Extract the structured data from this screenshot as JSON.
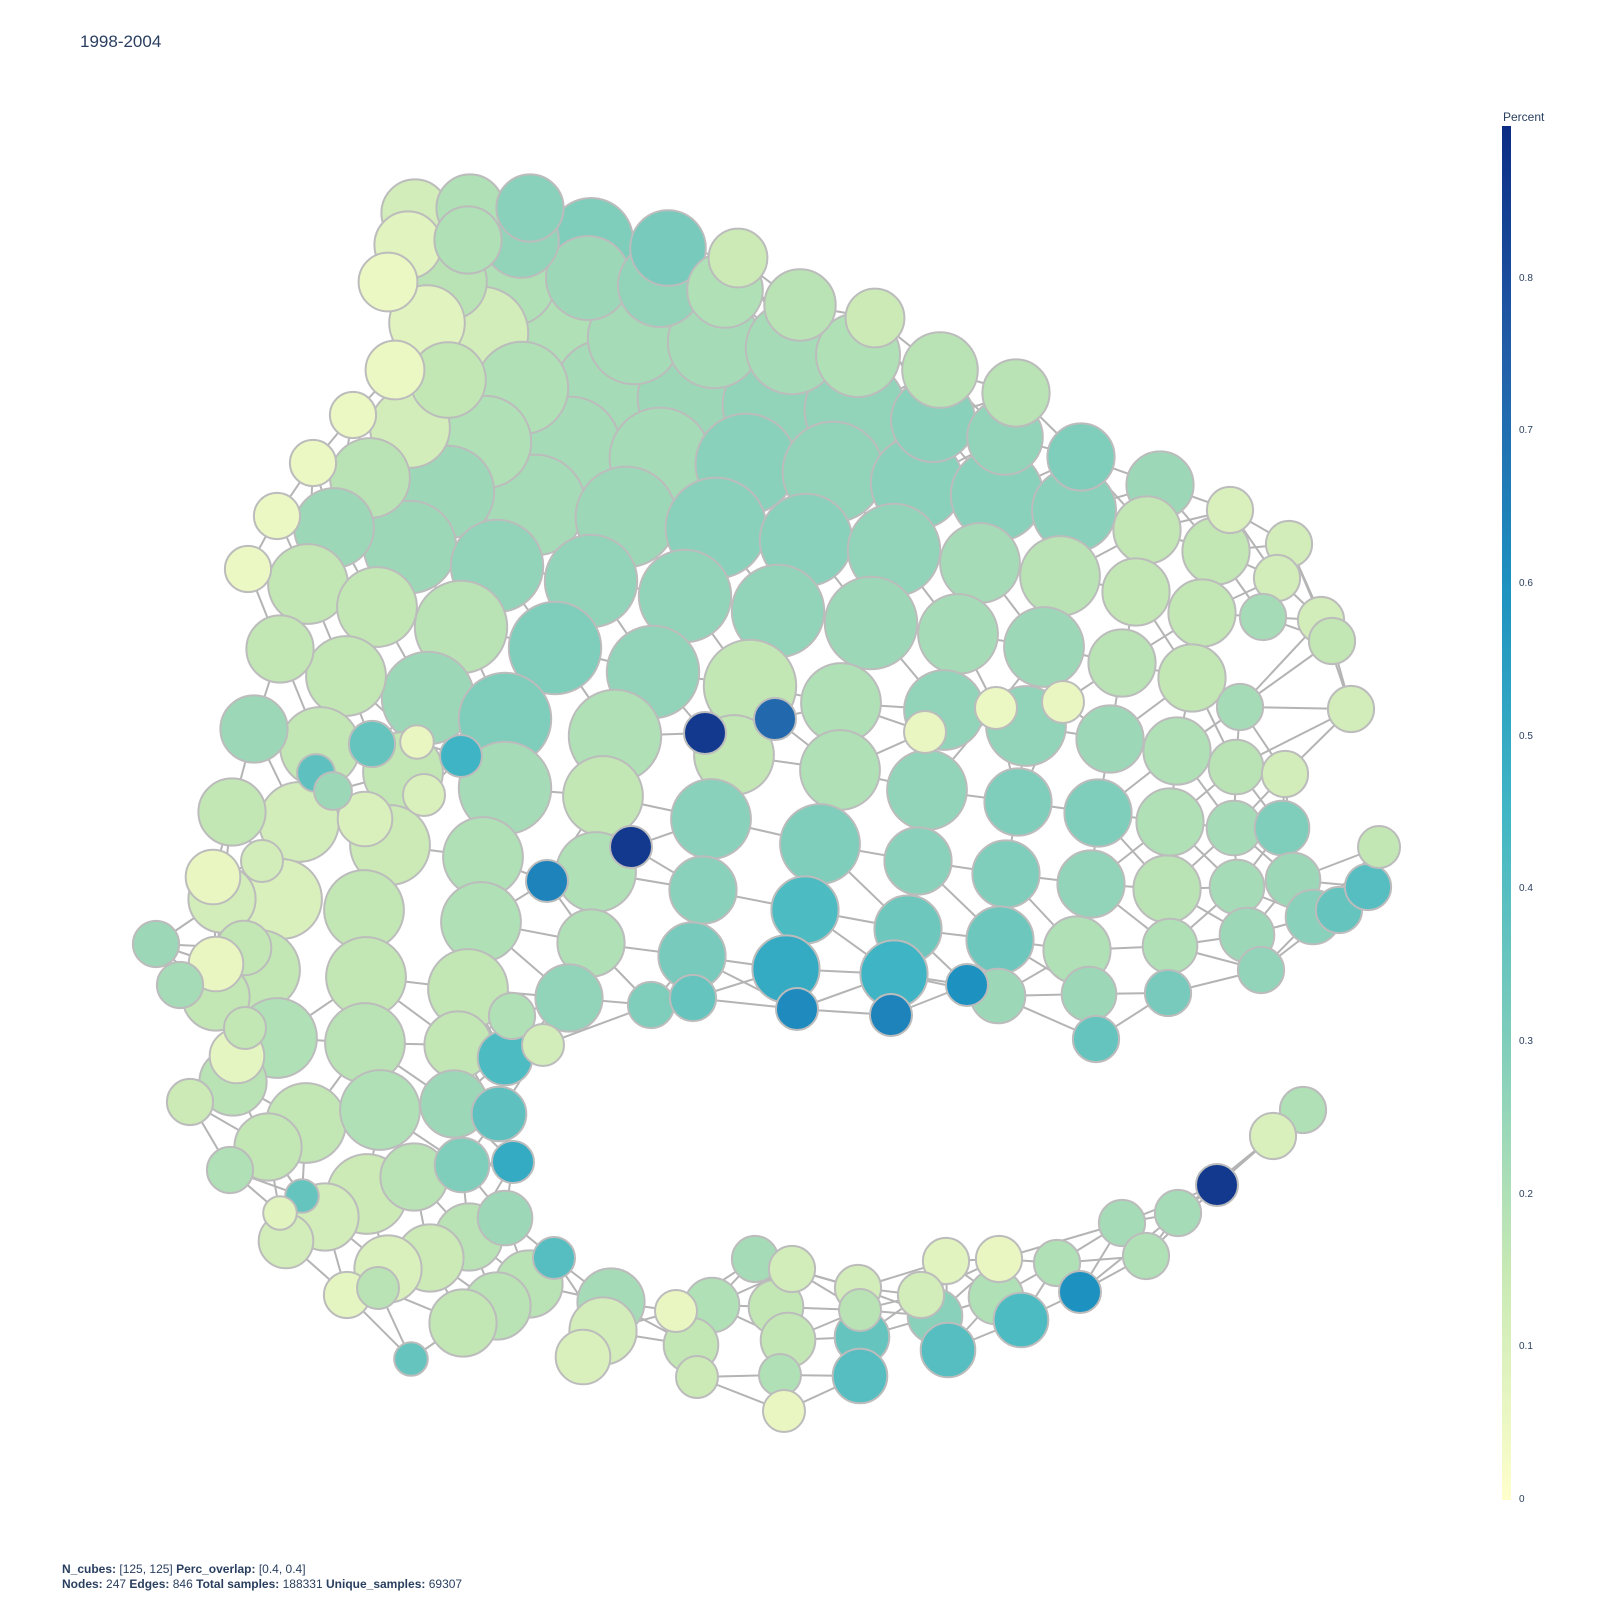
{
  "title": "1998-2004",
  "colorbar": {
    "title": "Percent",
    "ticks": [
      "0.8",
      "0.7",
      "0.6",
      "0.5",
      "0.4",
      "0.3",
      "0.2",
      "0.1",
      "0"
    ],
    "tick_values": [
      0.8,
      0.7,
      0.6,
      0.5,
      0.4,
      0.3,
      0.2,
      0.1,
      0
    ],
    "colors": [
      "#ffffcc",
      "#c7e9b4",
      "#7fcdbb",
      "#41b6c4",
      "#1d91c0",
      "#225ea8",
      "#0c2c84"
    ]
  },
  "footer": {
    "n_cubes_label": "N_cubes:",
    "n_cubes_value": "[125, 125]",
    "perc_overlap_label": "Perc_overlap:",
    "perc_overlap_value": "[0.4, 0.4]",
    "nodes_label": "Nodes:",
    "nodes_value": "247",
    "edges_label": "Edges:",
    "edges_value": "846",
    "total_samples_label": "Total samples:",
    "total_samples_value": "188331",
    "unique_samples_label": "Unique_samples:",
    "unique_samples_value": "69307"
  },
  "chart_data": {
    "type": "network",
    "title": "1998-2004",
    "color_title": "Percent",
    "color_range": [
      0,
      0.9
    ],
    "edge_color": "#b4b4b4",
    "node_border_color": "#bcbcbc",
    "nodes": [
      [
        415,
        213,
        1.6,
        0.12
      ],
      [
        470,
        208,
        1.6,
        0.2
      ],
      [
        530,
        208,
        1.6,
        0.28
      ],
      [
        591,
        240,
        2.0,
        0.3
      ],
      [
        668,
        248,
        1.8,
        0.32
      ],
      [
        738,
        258,
        1.4,
        0.14
      ],
      [
        408,
        245,
        1.6,
        0.08
      ],
      [
        468,
        240,
        1.6,
        0.2
      ],
      [
        521,
        240,
        1.8,
        0.26
      ],
      [
        388,
        282,
        1.4,
        0.05
      ],
      [
        449,
        282,
        1.8,
        0.18
      ],
      [
        510,
        280,
        2.2,
        0.2
      ],
      [
        588,
        278,
        2.0,
        0.24
      ],
      [
        660,
        285,
        2.0,
        0.26
      ],
      [
        725,
        290,
        1.8,
        0.2
      ],
      [
        800,
        305,
        1.7,
        0.18
      ],
      [
        875,
        318,
        1.4,
        0.14
      ],
      [
        427,
        323,
        1.8,
        0.08
      ],
      [
        482,
        333,
        2.2,
        0.12
      ],
      [
        558,
        335,
        2.4,
        0.2
      ],
      [
        634,
        338,
        2.2,
        0.22
      ],
      [
        714,
        342,
        2.2,
        0.22
      ],
      [
        792,
        348,
        2.2,
        0.22
      ],
      [
        858,
        355,
        2.0,
        0.2
      ],
      [
        940,
        370,
        1.8,
        0.18
      ],
      [
        1016,
        393,
        1.6,
        0.18
      ],
      [
        395,
        370,
        1.4,
        0.05
      ],
      [
        448,
        380,
        1.8,
        0.16
      ],
      [
        522,
        388,
        2.2,
        0.2
      ],
      [
        605,
        390,
        2.4,
        0.22
      ],
      [
        688,
        398,
        2.4,
        0.24
      ],
      [
        773,
        405,
        2.4,
        0.26
      ],
      [
        855,
        410,
        2.4,
        0.26
      ],
      [
        933,
        420,
        2.0,
        0.28
      ],
      [
        1005,
        437,
        1.8,
        0.26
      ],
      [
        1081,
        457,
        1.6,
        0.3
      ],
      [
        353,
        415,
        1.1,
        0.05
      ],
      [
        410,
        428,
        1.9,
        0.12
      ],
      [
        485,
        442,
        2.2,
        0.2
      ],
      [
        570,
        447,
        2.4,
        0.22
      ],
      [
        660,
        458,
        2.4,
        0.22
      ],
      [
        746,
        464,
        2.4,
        0.28
      ],
      [
        833,
        472,
        2.4,
        0.26
      ],
      [
        917,
        483,
        2.2,
        0.28
      ],
      [
        997,
        495,
        2.2,
        0.28
      ],
      [
        1074,
        510,
        2.0,
        0.28
      ],
      [
        1160,
        485,
        1.6,
        0.24
      ],
      [
        313,
        463,
        1.1,
        0.05
      ],
      [
        370,
        478,
        1.9,
        0.18
      ],
      [
        448,
        492,
        2.2,
        0.24
      ],
      [
        535,
        505,
        2.4,
        0.22
      ],
      [
        626,
        517,
        2.4,
        0.24
      ],
      [
        716,
        528,
        2.4,
        0.28
      ],
      [
        806,
        540,
        2.2,
        0.28
      ],
      [
        894,
        550,
        2.2,
        0.26
      ],
      [
        980,
        563,
        1.9,
        0.22
      ],
      [
        1060,
        576,
        1.9,
        0.18
      ],
      [
        1147,
        530,
        1.6,
        0.16
      ],
      [
        1216,
        551,
        1.6,
        0.16
      ],
      [
        1230,
        510,
        1.1,
        0.1
      ],
      [
        1289,
        544,
        1.1,
        0.12
      ],
      [
        277,
        516,
        1.1,
        0.05
      ],
      [
        334,
        528,
        1.9,
        0.24
      ],
      [
        410,
        547,
        2.2,
        0.24
      ],
      [
        497,
        566,
        2.2,
        0.26
      ],
      [
        591,
        581,
        2.2,
        0.26
      ],
      [
        685,
        596,
        2.2,
        0.26
      ],
      [
        778,
        611,
        2.2,
        0.26
      ],
      [
        871,
        623,
        2.2,
        0.24
      ],
      [
        958,
        634,
        1.9,
        0.22
      ],
      [
        1044,
        647,
        1.9,
        0.24
      ],
      [
        1136,
        592,
        1.6,
        0.16
      ],
      [
        1202,
        613,
        1.6,
        0.16
      ],
      [
        1277,
        578,
        1.1,
        0.12
      ],
      [
        1263,
        617,
        1.1,
        0.22
      ],
      [
        1321,
        620,
        1.1,
        0.12
      ],
      [
        1332,
        641,
        1.1,
        0.16
      ],
      [
        1351,
        709,
        1.1,
        0.12
      ],
      [
        248,
        569,
        1.1,
        0.05
      ],
      [
        308,
        584,
        1.9,
        0.16
      ],
      [
        377,
        607,
        1.9,
        0.16
      ],
      [
        461,
        627,
        2.2,
        0.18
      ],
      [
        555,
        648,
        2.2,
        0.3
      ],
      [
        653,
        672,
        2.2,
        0.26
      ],
      [
        750,
        686,
        2.2,
        0.16
      ],
      [
        841,
        703,
        1.9,
        0.2
      ],
      [
        944,
        710,
        1.9,
        0.26
      ],
      [
        1026,
        726,
        1.9,
        0.26
      ],
      [
        1110,
        739,
        1.6,
        0.24
      ],
      [
        1122,
        663,
        1.6,
        0.18
      ],
      [
        1192,
        678,
        1.6,
        0.16
      ],
      [
        1240,
        707,
        1.1,
        0.22
      ],
      [
        280,
        649,
        1.6,
        0.16
      ],
      [
        346,
        676,
        1.9,
        0.16
      ],
      [
        428,
        698,
        2.2,
        0.24
      ],
      [
        505,
        719,
        2.2,
        0.3
      ],
      [
        615,
        736,
        2.2,
        0.2
      ],
      [
        734,
        755,
        1.9,
        0.16
      ],
      [
        840,
        770,
        1.9,
        0.2
      ],
      [
        927,
        790,
        1.9,
        0.26
      ],
      [
        1018,
        802,
        1.6,
        0.3
      ],
      [
        1098,
        813,
        1.6,
        0.3
      ],
      [
        1177,
        751,
        1.6,
        0.2
      ],
      [
        1236,
        767,
        1.3,
        0.18
      ],
      [
        1285,
        774,
        1.1,
        0.12
      ],
      [
        254,
        729,
        1.6,
        0.24
      ],
      [
        320,
        747,
        1.9,
        0.16
      ],
      [
        372,
        744,
        1.1,
        0.36
      ],
      [
        403,
        772,
        1.9,
        0.16
      ],
      [
        461,
        756,
        1.0,
        0.46
      ],
      [
        417,
        742,
        0.8,
        0.06
      ],
      [
        316,
        773,
        0.9,
        0.38
      ],
      [
        333,
        791,
        0.9,
        0.24
      ],
      [
        424,
        795,
        1.0,
        0.1
      ],
      [
        505,
        788,
        2.2,
        0.22
      ],
      [
        603,
        796,
        1.9,
        0.16
      ],
      [
        711,
        819,
        1.9,
        0.28
      ],
      [
        820,
        844,
        1.9,
        0.3
      ],
      [
        918,
        861,
        1.6,
        0.28
      ],
      [
        1006,
        874,
        1.6,
        0.3
      ],
      [
        1091,
        884,
        1.6,
        0.26
      ],
      [
        1167,
        889,
        1.6,
        0.18
      ],
      [
        1170,
        822,
        1.6,
        0.2
      ],
      [
        1234,
        828,
        1.3,
        0.22
      ],
      [
        1282,
        828,
        1.3,
        0.3
      ],
      [
        1379,
        847,
        1.0,
        0.16
      ],
      [
        232,
        812,
        1.6,
        0.16
      ],
      [
        299,
        822,
        1.9,
        0.12
      ],
      [
        365,
        819,
        1.3,
        0.1
      ],
      [
        390,
        845,
        1.9,
        0.14
      ],
      [
        483,
        857,
        1.9,
        0.2
      ],
      [
        631,
        847,
        1.0,
        0.86
      ],
      [
        596,
        872,
        1.9,
        0.2
      ],
      [
        547,
        881,
        1.0,
        0.64
      ],
      [
        703,
        890,
        1.6,
        0.28
      ],
      [
        805,
        910,
        1.6,
        0.42
      ],
      [
        908,
        929,
        1.6,
        0.34
      ],
      [
        1000,
        940,
        1.6,
        0.34
      ],
      [
        1077,
        950,
        1.6,
        0.2
      ],
      [
        1170,
        946,
        1.3,
        0.2
      ],
      [
        1237,
        887,
        1.3,
        0.22
      ],
      [
        1293,
        880,
        1.3,
        0.24
      ],
      [
        1313,
        917,
        1.3,
        0.28
      ],
      [
        1339,
        910,
        1.1,
        0.36
      ],
      [
        1368,
        887,
        1.1,
        0.4
      ],
      [
        1247,
        935,
        1.3,
        0.24
      ],
      [
        262,
        861,
        1.0,
        0.12
      ],
      [
        213,
        877,
        1.3,
        0.06
      ],
      [
        222,
        899,
        1.6,
        0.12
      ],
      [
        282,
        899,
        1.9,
        0.1
      ],
      [
        364,
        910,
        1.9,
        0.16
      ],
      [
        481,
        922,
        1.9,
        0.2
      ],
      [
        591,
        943,
        1.6,
        0.2
      ],
      [
        692,
        956,
        1.6,
        0.32
      ],
      [
        786,
        969,
        1.6,
        0.5
      ],
      [
        894,
        974,
        1.6,
        0.46
      ],
      [
        967,
        985,
        1.0,
        0.6
      ],
      [
        998,
        996,
        1.3,
        0.24
      ],
      [
        1089,
        994,
        1.3,
        0.24
      ],
      [
        1168,
        993,
        1.1,
        0.32
      ],
      [
        1261,
        970,
        1.1,
        0.26
      ],
      [
        156,
        944,
        1.1,
        0.24
      ],
      [
        244,
        948,
        1.3,
        0.16
      ],
      [
        216,
        964,
        1.3,
        0.06
      ],
      [
        180,
        985,
        1.1,
        0.22
      ],
      [
        216,
        997,
        1.6,
        0.16
      ],
      [
        260,
        970,
        1.9,
        0.16
      ],
      [
        366,
        977,
        1.9,
        0.16
      ],
      [
        468,
        989,
        1.9,
        0.16
      ],
      [
        569,
        998,
        1.6,
        0.26
      ],
      [
        651,
        1005,
        1.1,
        0.3
      ],
      [
        693,
        998,
        1.1,
        0.36
      ],
      [
        797,
        1009,
        1.0,
        0.62
      ],
      [
        891,
        1015,
        1.0,
        0.64
      ],
      [
        1096,
        1039,
        1.1,
        0.36
      ],
      [
        245,
        1028,
        1.0,
        0.16
      ],
      [
        277,
        1038,
        1.9,
        0.2
      ],
      [
        365,
        1043,
        1.9,
        0.18
      ],
      [
        458,
        1045,
        1.6,
        0.16
      ],
      [
        512,
        1016,
        1.1,
        0.2
      ],
      [
        543,
        1045,
        1.0,
        0.12
      ],
      [
        505,
        1058,
        1.3,
        0.42
      ],
      [
        237,
        1056,
        1.3,
        0.07
      ],
      [
        233,
        1082,
        1.6,
        0.18
      ],
      [
        190,
        1102,
        1.1,
        0.14
      ],
      [
        306,
        1123,
        1.9,
        0.16
      ],
      [
        380,
        1110,
        1.9,
        0.2
      ],
      [
        454,
        1104,
        1.6,
        0.24
      ],
      [
        499,
        1114,
        1.3,
        0.38
      ],
      [
        1303,
        1110,
        1.1,
        0.2
      ],
      [
        1273,
        1136,
        1.1,
        0.1
      ],
      [
        230,
        1170,
        1.1,
        0.2
      ],
      [
        268,
        1147,
        1.6,
        0.16
      ],
      [
        462,
        1165,
        1.3,
        0.3
      ],
      [
        513,
        1162,
        1.0,
        0.5
      ],
      [
        414,
        1177,
        1.6,
        0.18
      ],
      [
        367,
        1194,
        1.9,
        0.14
      ],
      [
        302,
        1196,
        0.8,
        0.36
      ],
      [
        280,
        1213,
        0.8,
        0.08
      ],
      [
        325,
        1217,
        1.6,
        0.12
      ],
      [
        286,
        1241,
        1.3,
        0.12
      ],
      [
        505,
        1218,
        1.3,
        0.24
      ],
      [
        469,
        1237,
        1.6,
        0.18
      ],
      [
        554,
        1258,
        1.0,
        0.4
      ],
      [
        1217,
        1185,
        1.0,
        0.86
      ],
      [
        1178,
        1213,
        1.1,
        0.22
      ],
      [
        1122,
        1223,
        1.1,
        0.22
      ],
      [
        1146,
        1256,
        1.1,
        0.2
      ],
      [
        755,
        1259,
        1.1,
        0.22
      ],
      [
        792,
        1269,
        1.1,
        0.12
      ],
      [
        946,
        1261,
        1.1,
        0.08
      ],
      [
        999,
        1259,
        1.1,
        0.06
      ],
      [
        1057,
        1263,
        1.1,
        0.2
      ],
      [
        430,
        1258,
        1.6,
        0.14
      ],
      [
        388,
        1269,
        1.6,
        0.1
      ],
      [
        347,
        1295,
        1.1,
        0.07
      ],
      [
        378,
        1288,
        1.0,
        0.18
      ],
      [
        529,
        1284,
        1.6,
        0.18
      ],
      [
        611,
        1302,
        1.6,
        0.22
      ],
      [
        712,
        1305,
        1.3,
        0.2
      ],
      [
        776,
        1307,
        1.3,
        0.16
      ],
      [
        858,
        1288,
        1.1,
        0.12
      ],
      [
        921,
        1295,
        1.1,
        0.12
      ],
      [
        996,
        1297,
        1.3,
        0.2
      ],
      [
        1080,
        1292,
        1.0,
        0.6
      ],
      [
        497,
        1306,
        1.6,
        0.18
      ],
      [
        463,
        1323,
        1.6,
        0.16
      ],
      [
        603,
        1331,
        1.6,
        0.12
      ],
      [
        676,
        1311,
        1.0,
        0.06
      ],
      [
        691,
        1345,
        1.3,
        0.16
      ],
      [
        788,
        1340,
        1.3,
        0.16
      ],
      [
        860,
        1310,
        1.0,
        0.18
      ],
      [
        862,
        1337,
        1.3,
        0.36
      ],
      [
        935,
        1316,
        1.3,
        0.28
      ],
      [
        1021,
        1320,
        1.3,
        0.42
      ],
      [
        948,
        1350,
        1.3,
        0.4
      ],
      [
        583,
        1357,
        1.3,
        0.1
      ],
      [
        697,
        1377,
        1.0,
        0.14
      ],
      [
        780,
        1375,
        1.0,
        0.2
      ],
      [
        860,
        1376,
        1.3,
        0.4
      ],
      [
        411,
        1359,
        0.8,
        0.36
      ],
      [
        784,
        1411,
        1.0,
        0.06
      ],
      [
        636,
        800,
        0,
        0.5
      ],
      [
        705,
        733,
        1.0,
        0.86
      ],
      [
        775,
        719,
        1.0,
        0.72
      ],
      [
        925,
        732,
        1.0,
        0.06
      ],
      [
        996,
        708,
        1.0,
        0.05
      ],
      [
        1063,
        702,
        1.0,
        0.06
      ]
    ]
  }
}
